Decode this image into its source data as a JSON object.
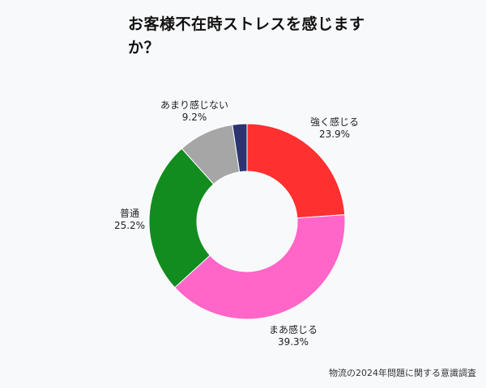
{
  "chart_data": {
    "type": "pie",
    "title": "お客様不在時ストレスを感じますか？",
    "labels": [
      "強く感じる",
      "まあ感じる",
      "普通",
      "あまり感じない",
      ""
    ],
    "values": [
      23.9,
      39.3,
      25.2,
      9.2,
      2.4
    ],
    "value_labels": [
      "23.9%",
      "39.3%",
      "25.2%",
      "9.2%",
      ""
    ],
    "colors": [
      "#ff3030",
      "#ff66c8",
      "#128c1f",
      "#a6a6a6",
      "#2b3470"
    ],
    "legend": "none"
  },
  "source": "物流の2024年問題に関する意識調査"
}
